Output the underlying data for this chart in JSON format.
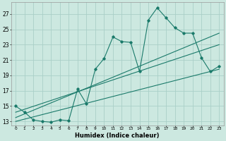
{
  "title": "",
  "xlabel": "Humidex (Indice chaleur)",
  "ylabel": "",
  "bg_color": "#cce8e0",
  "grid_color": "#aacfc8",
  "line_color": "#1a7a6a",
  "ylim": [
    12.5,
    28.5
  ],
  "xlim": [
    -0.5,
    23.5
  ],
  "yticks": [
    13,
    15,
    17,
    19,
    21,
    23,
    25,
    27
  ],
  "xticks": [
    0,
    1,
    2,
    3,
    4,
    5,
    6,
    7,
    8,
    9,
    10,
    11,
    12,
    13,
    14,
    15,
    16,
    17,
    18,
    19,
    20,
    21,
    22,
    23
  ],
  "main_x": [
    0,
    1,
    2,
    3,
    4,
    5,
    6,
    7,
    8,
    9,
    10,
    11,
    12,
    13,
    14,
    15,
    16,
    17,
    18,
    19,
    20,
    21,
    22,
    23
  ],
  "main_y": [
    15.0,
    14.2,
    13.2,
    13.0,
    12.9,
    13.2,
    13.1,
    17.2,
    15.3,
    19.8,
    21.2,
    24.0,
    23.4,
    23.3,
    19.5,
    26.2,
    27.8,
    26.5,
    25.2,
    24.5,
    24.5,
    21.3,
    19.5,
    20.2
  ],
  "line1_x": [
    0,
    23
  ],
  "line1_y": [
    13.5,
    24.5
  ],
  "line2_x": [
    0,
    23
  ],
  "line2_y": [
    14.2,
    23.0
  ],
  "line3_x": [
    0,
    23
  ],
  "line3_y": [
    13.0,
    19.8
  ]
}
